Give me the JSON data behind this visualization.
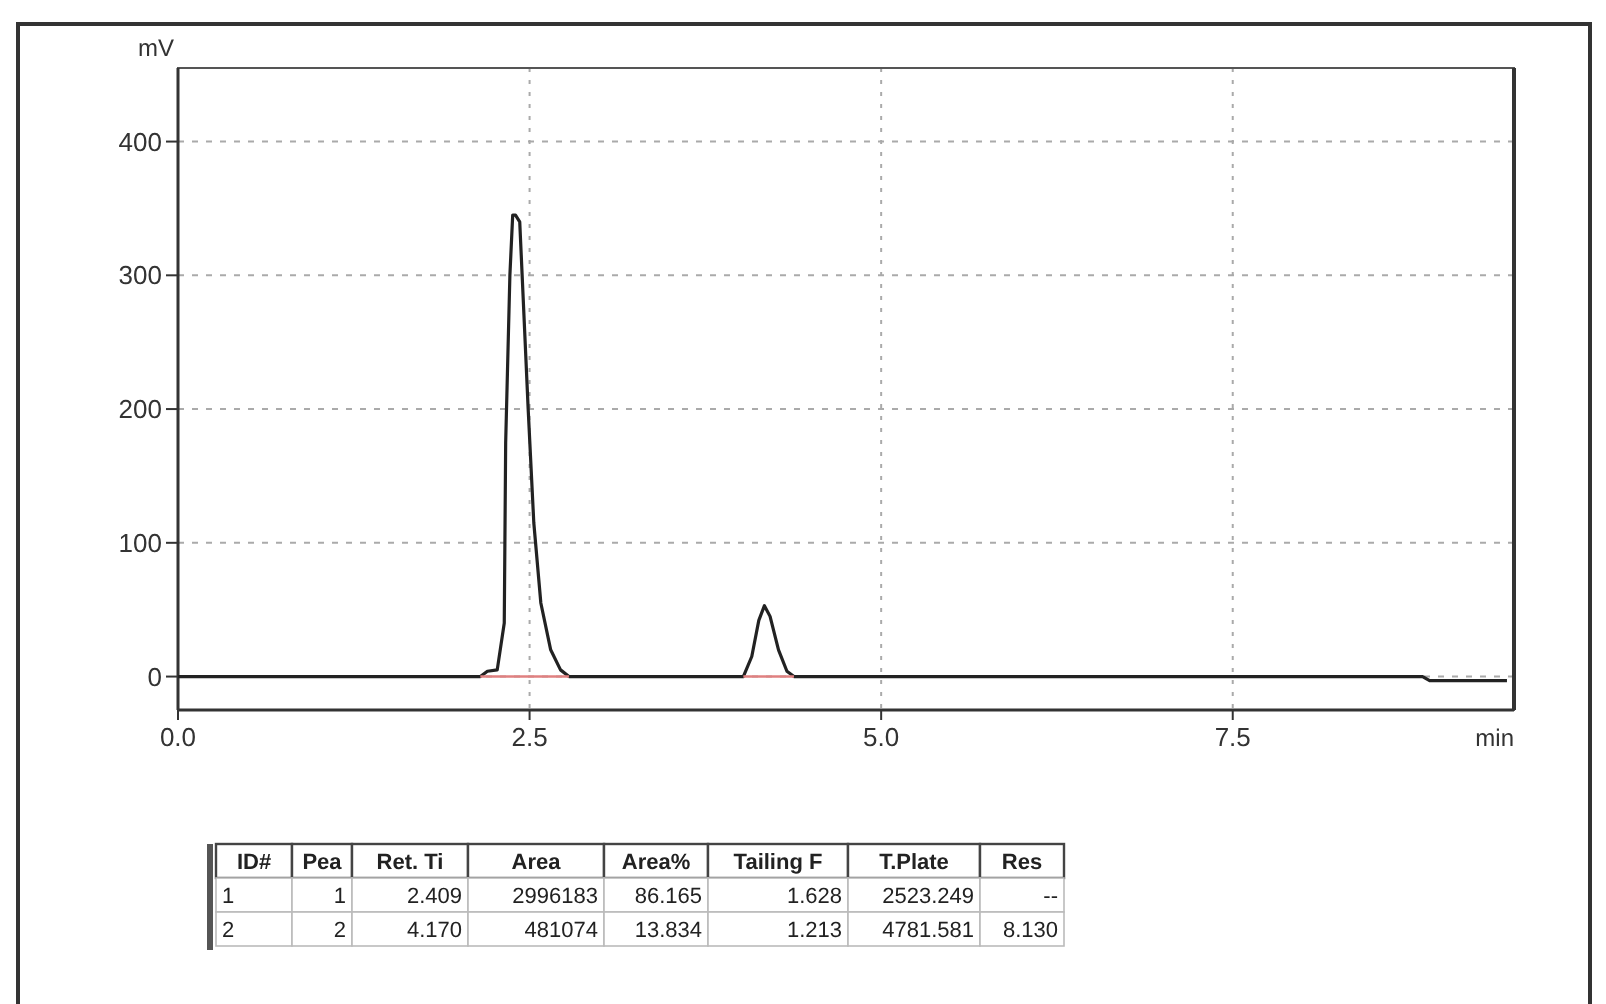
{
  "chart_data": {
    "type": "line",
    "xlabel": "min",
    "ylabel": "mV",
    "xlim": [
      0,
      9.5
    ],
    "ylim": [
      -25,
      455
    ],
    "xticks": [
      {
        "value": 0,
        "label": "0.0"
      },
      2.5,
      {
        "value": 5,
        "label": "5.0"
      },
      7.5
    ],
    "yticks": [
      0,
      100,
      200,
      300,
      400
    ],
    "grid": true,
    "marker": "none",
    "line_style": "solid",
    "series": [
      {
        "color": "#222222",
        "x": [
          0,
          2.15,
          2.2,
          2.27,
          2.32,
          2.33,
          2.36,
          2.38,
          2.4,
          2.43,
          2.46,
          2.49,
          2.53,
          2.58,
          2.65,
          2.72,
          2.78,
          4.02,
          4.08,
          4.13,
          4.17,
          4.21,
          4.27,
          4.33,
          4.38,
          8.85,
          8.9,
          9.45
        ],
        "values": [
          0,
          0,
          4,
          5,
          40,
          175,
          300,
          345,
          345,
          340,
          270,
          200,
          115,
          55,
          20,
          5,
          0,
          0,
          15,
          42,
          53,
          45,
          20,
          4,
          0,
          0,
          -3,
          -3
        ]
      },
      {
        "color": "#e08080",
        "x": [
          2.15,
          2.78
        ],
        "values": [
          0,
          0
        ]
      },
      {
        "color": "#e08080",
        "x": [
          4.02,
          4.38
        ],
        "values": [
          0,
          0
        ]
      }
    ],
    "annotations": [
      "ID#",
      "Pea",
      "Ret. Ti",
      "Area",
      "Area%",
      "Tailing F",
      "T.Plate",
      "Res",
      "1",
      "1",
      "2.409",
      "2996183",
      "86.165",
      "1.628",
      "2523.249",
      "--",
      "2",
      "2",
      "4.170",
      "481074",
      "13.834",
      "1.213",
      "4781.581",
      "8.130"
    ]
  }
}
